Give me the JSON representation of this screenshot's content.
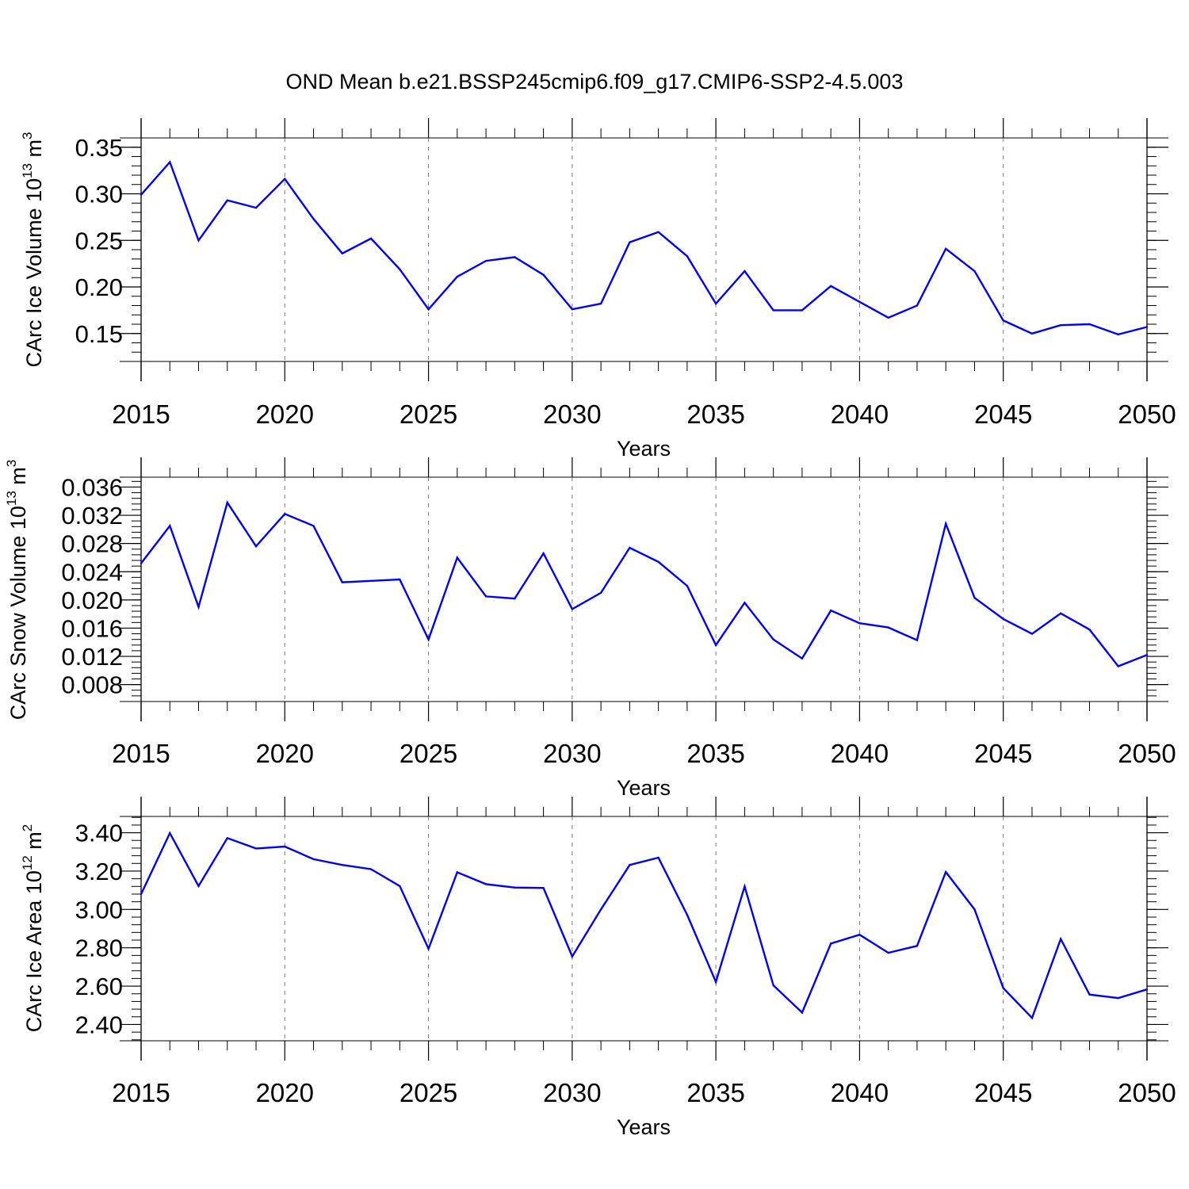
{
  "figure": {
    "title": "OND Mean b.e21.BSSP245cmip6.f09_g17.CMIP6-SSP2-4.5.003"
  },
  "chart_data": [
    {
      "type": "line",
      "title": "",
      "xlabel": "Years",
      "ylabel": {
        "prefix": "CArc Ice Volume 10",
        "exp1": "13",
        "mid": " m",
        "exp2": "3"
      },
      "xlim": [
        2015,
        2050
      ],
      "ylim": [
        0.12,
        0.36
      ],
      "xticks": [
        "2015",
        "2020",
        "2025",
        "2030",
        "2035",
        "2040",
        "2045",
        "2050"
      ],
      "yticks": [
        "0.15",
        "0.20",
        "0.25",
        "0.30",
        "0.35"
      ],
      "ytick_values": [
        0.15,
        0.2,
        0.25,
        0.3,
        0.35
      ],
      "color": "#0000ff",
      "series": [
        {
          "name": "Ice Volume",
          "x": [
            2015,
            2016,
            2017,
            2018,
            2019,
            2020,
            2021,
            2022,
            2023,
            2024,
            2025,
            2026,
            2027,
            2028,
            2029,
            2030,
            2031,
            2032,
            2033,
            2034,
            2035,
            2036,
            2037,
            2038,
            2039,
            2040,
            2041,
            2042,
            2043,
            2044,
            2045,
            2046,
            2047,
            2048,
            2049,
            2050
          ],
          "values": [
            0.299,
            0.334,
            0.25,
            0.293,
            0.285,
            0.316,
            0.273,
            0.236,
            0.252,
            0.219,
            0.176,
            0.211,
            0.228,
            0.232,
            0.213,
            0.176,
            0.182,
            0.248,
            0.259,
            0.233,
            0.182,
            0.217,
            0.175,
            0.175,
            0.201,
            0.184,
            0.167,
            0.18,
            0.241,
            0.217,
            0.164,
            0.15,
            0.159,
            0.16,
            0.149,
            0.157
          ]
        }
      ]
    },
    {
      "type": "line",
      "title": "",
      "xlabel": "Years",
      "ylabel": {
        "prefix": "CArc Snow Volume 10",
        "exp1": "13",
        "mid": " m",
        "exp2": "3"
      },
      "xlim": [
        2015,
        2050
      ],
      "ylim": [
        0.0056,
        0.0374
      ],
      "xticks": [
        "2015",
        "2020",
        "2025",
        "2030",
        "2035",
        "2040",
        "2045",
        "2050"
      ],
      "yticks": [
        "0.008",
        "0.012",
        "0.016",
        "0.020",
        "0.024",
        "0.028",
        "0.032",
        "0.036"
      ],
      "ytick_values": [
        0.008,
        0.012,
        0.016,
        0.02,
        0.024,
        0.028,
        0.032,
        0.036
      ],
      "color": "#0000ff",
      "series": [
        {
          "name": "Snow Volume",
          "x": [
            2015,
            2016,
            2017,
            2018,
            2019,
            2020,
            2021,
            2022,
            2023,
            2024,
            2025,
            2026,
            2027,
            2028,
            2029,
            2030,
            2031,
            2032,
            2033,
            2034,
            2035,
            2036,
            2037,
            2038,
            2039,
            2040,
            2041,
            2042,
            2043,
            2044,
            2045,
            2046,
            2047,
            2048,
            2049,
            2050
          ],
          "values": [
            0.0252,
            0.0305,
            0.019,
            0.0338,
            0.0276,
            0.0322,
            0.0305,
            0.0225,
            0.0227,
            0.0229,
            0.0144,
            0.026,
            0.0205,
            0.0202,
            0.0266,
            0.0187,
            0.021,
            0.0274,
            0.0254,
            0.022,
            0.0136,
            0.0196,
            0.0144,
            0.0117,
            0.0185,
            0.0167,
            0.0161,
            0.0143,
            0.0308,
            0.0203,
            0.0173,
            0.0152,
            0.0181,
            0.0158,
            0.0106,
            0.0122
          ]
        }
      ]
    },
    {
      "type": "line",
      "title": "",
      "xlabel": "Years",
      "ylabel": {
        "prefix": "CArc Ice Area 10",
        "exp1": "12",
        "mid": " m",
        "exp2": "2"
      },
      "xlim": [
        2015,
        2050
      ],
      "ylim": [
        2.315,
        3.485
      ],
      "xticks": [
        "2015",
        "2020",
        "2025",
        "2030",
        "2035",
        "2040",
        "2045",
        "2050"
      ],
      "yticks": [
        "2.40",
        "2.60",
        "2.80",
        "3.00",
        "3.20",
        "3.40"
      ],
      "ytick_values": [
        2.4,
        2.6,
        2.8,
        3.0,
        3.2,
        3.4
      ],
      "color": "#0000ff",
      "series": [
        {
          "name": "Ice Area",
          "x": [
            2015,
            2016,
            2017,
            2018,
            2019,
            2020,
            2021,
            2022,
            2023,
            2024,
            2025,
            2026,
            2027,
            2028,
            2029,
            2030,
            2031,
            2032,
            2033,
            2034,
            2035,
            2036,
            2037,
            2038,
            2039,
            2040,
            2041,
            2042,
            2043,
            2044,
            2045,
            2046,
            2047,
            2048,
            2049,
            2050
          ],
          "values": [
            3.08,
            3.398,
            3.122,
            3.372,
            3.318,
            3.328,
            3.262,
            3.232,
            3.21,
            3.122,
            2.795,
            3.194,
            3.132,
            3.114,
            3.112,
            2.755,
            3.0,
            3.232,
            3.27,
            2.972,
            2.622,
            3.12,
            2.604,
            2.462,
            2.822,
            2.868,
            2.774,
            2.81,
            3.195,
            3.0,
            2.59,
            2.434,
            2.846,
            2.556,
            2.538,
            2.583
          ]
        }
      ]
    }
  ]
}
